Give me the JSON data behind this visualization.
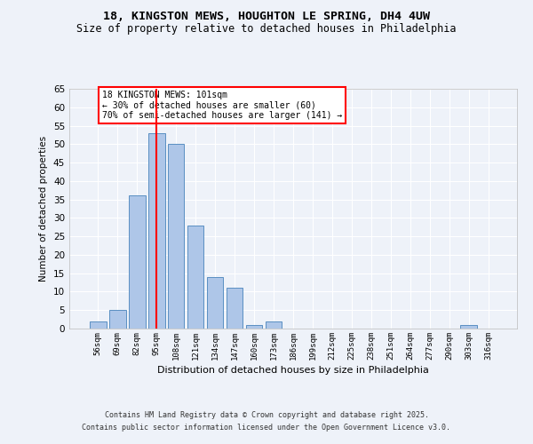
{
  "title_line1": "18, KINGSTON MEWS, HOUGHTON LE SPRING, DH4 4UW",
  "title_line2": "Size of property relative to detached houses in Philadelphia",
  "xlabel": "Distribution of detached houses by size in Philadelphia",
  "ylabel": "Number of detached properties",
  "categories": [
    "56sqm",
    "69sqm",
    "82sqm",
    "95sqm",
    "108sqm",
    "121sqm",
    "134sqm",
    "147sqm",
    "160sqm",
    "173sqm",
    "186sqm",
    "199sqm",
    "212sqm",
    "225sqm",
    "238sqm",
    "251sqm",
    "264sqm",
    "277sqm",
    "290sqm",
    "303sqm",
    "316sqm"
  ],
  "values": [
    2,
    5,
    36,
    53,
    50,
    28,
    14,
    11,
    1,
    2,
    0,
    0,
    0,
    0,
    0,
    0,
    0,
    0,
    0,
    1,
    0
  ],
  "bar_color": "#aec6e8",
  "bar_edge_color": "#5a8fc2",
  "red_line_index": 3,
  "annotation_box_text": "18 KINGSTON MEWS: 101sqm\n← 30% of detached houses are smaller (60)\n70% of semi-detached houses are larger (141) →",
  "footer_line1": "Contains HM Land Registry data © Crown copyright and database right 2025.",
  "footer_line2": "Contains public sector information licensed under the Open Government Licence v3.0.",
  "background_color": "#eef2f9",
  "plot_bg_color": "#eef2f9",
  "ylim": [
    0,
    65
  ],
  "yticks": [
    0,
    5,
    10,
    15,
    20,
    25,
    30,
    35,
    40,
    45,
    50,
    55,
    60,
    65
  ]
}
